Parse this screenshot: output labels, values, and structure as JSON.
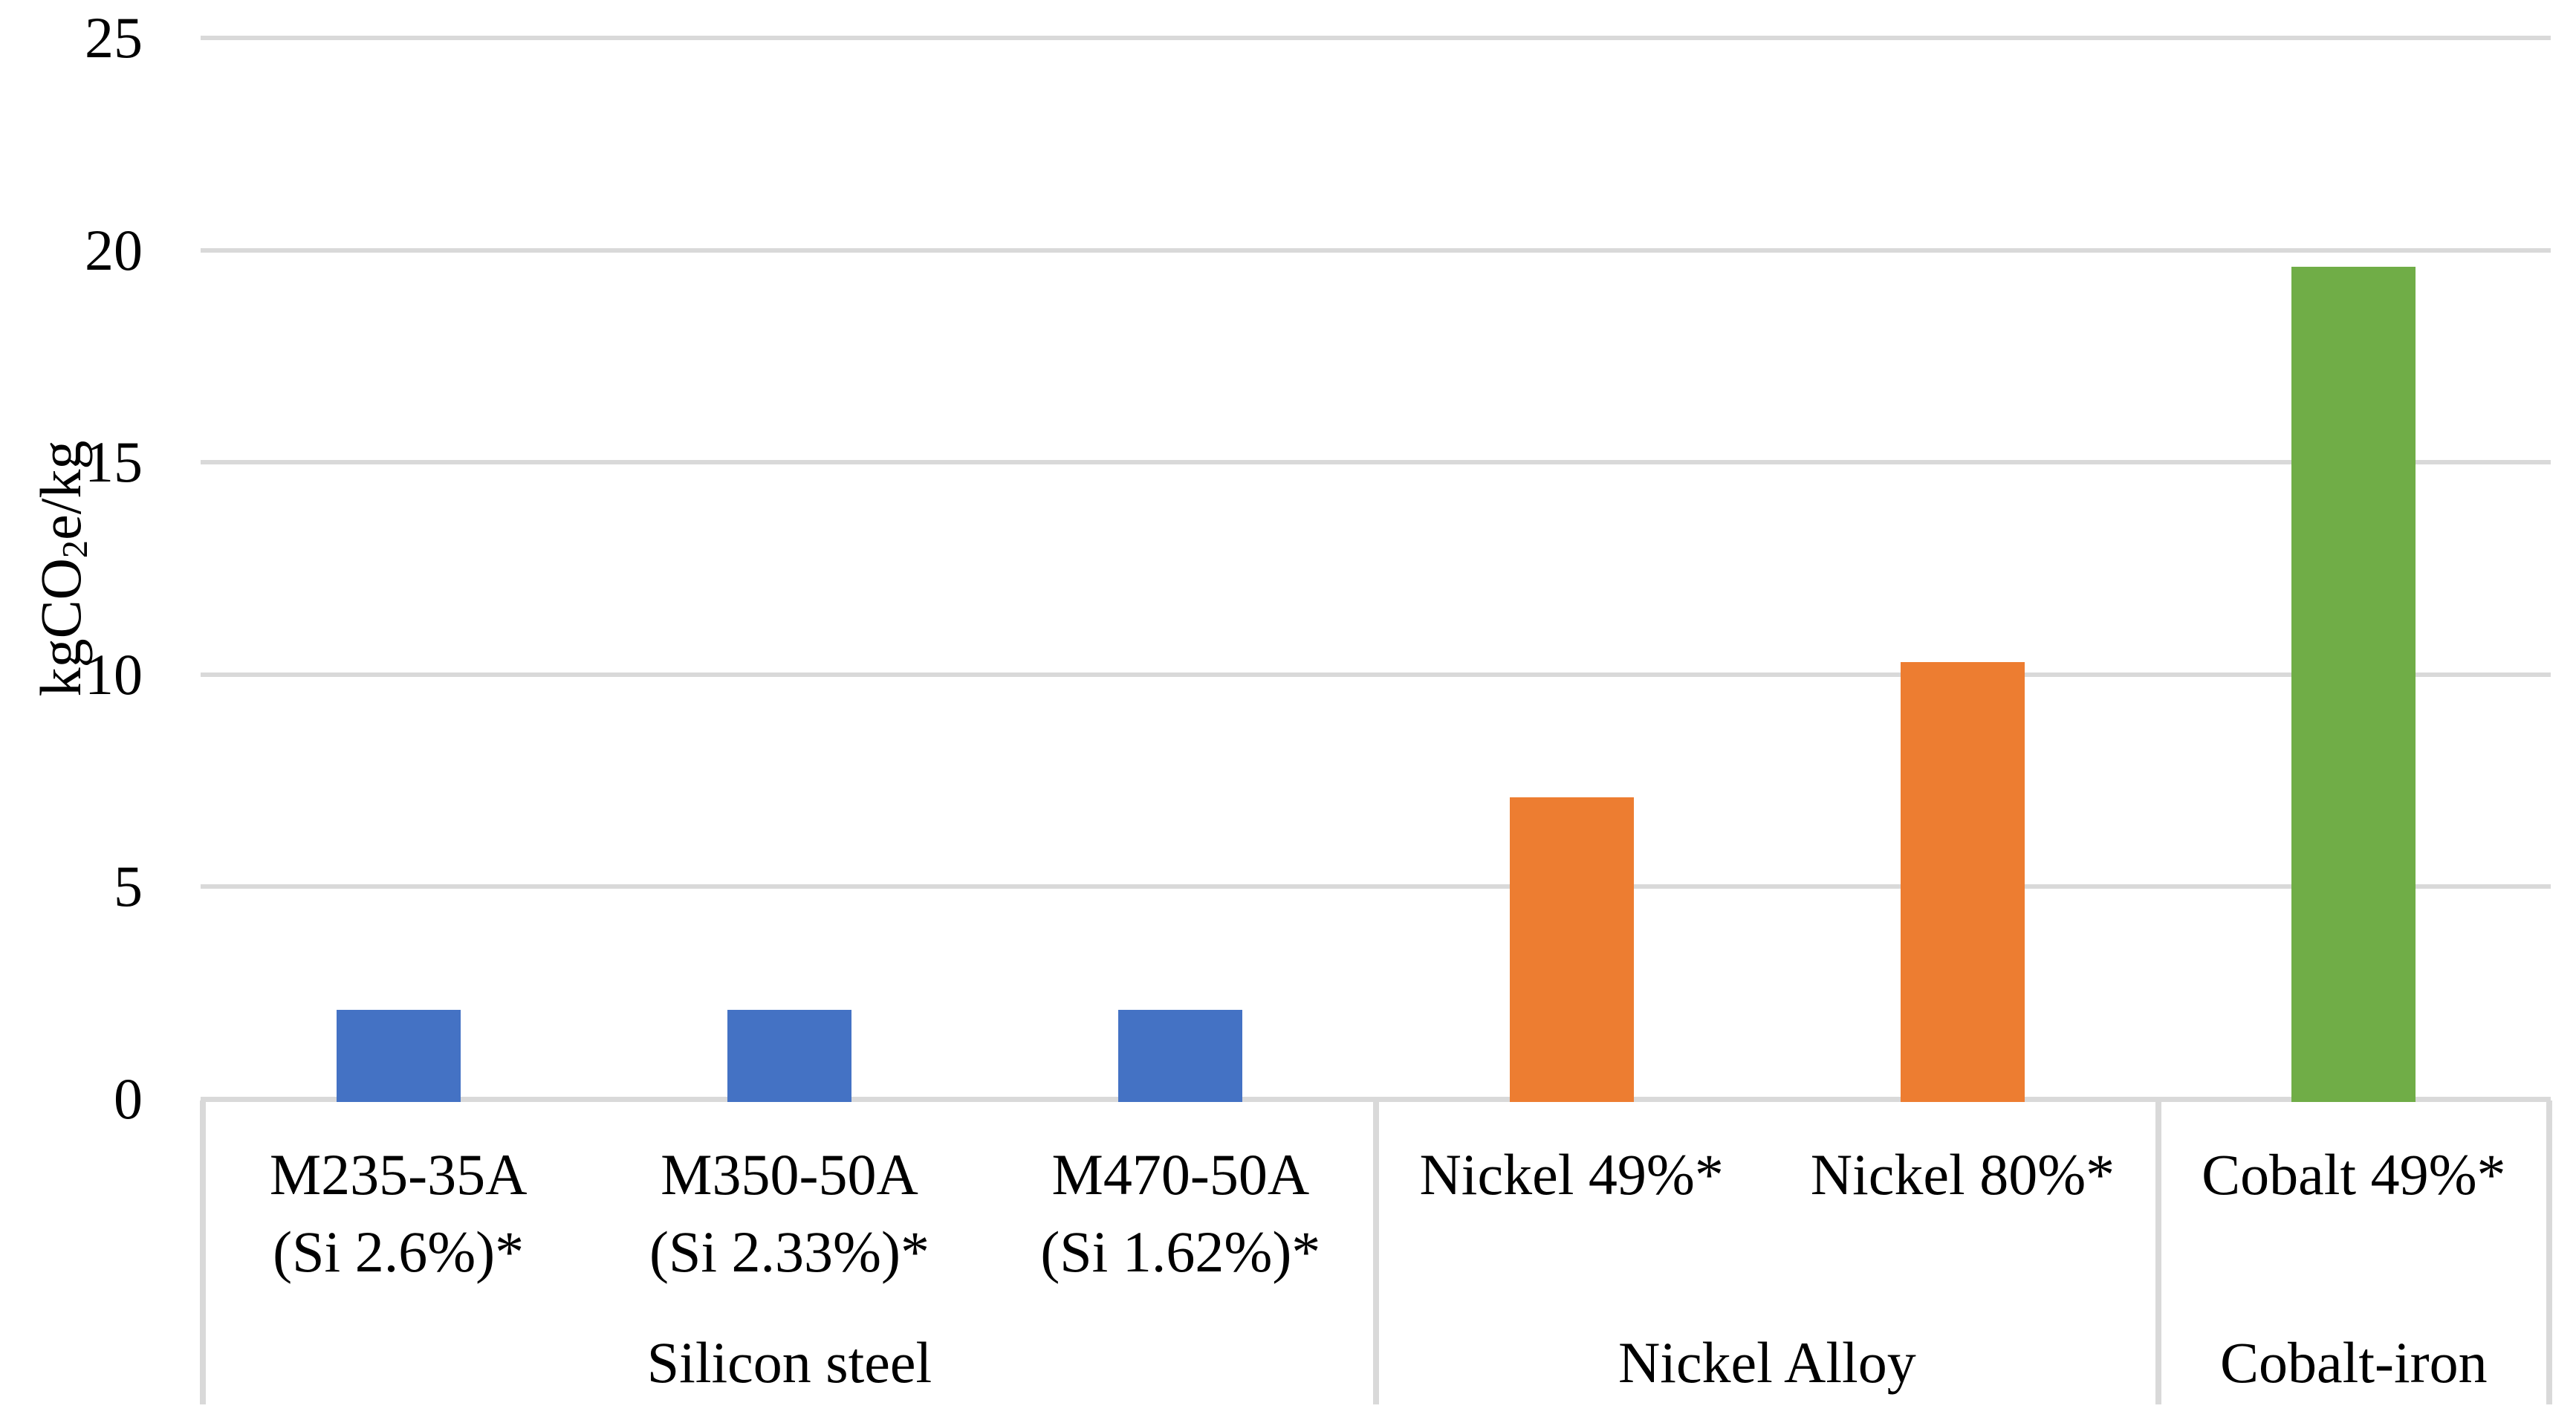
{
  "chart_data": {
    "type": "bar",
    "title": "",
    "ylabel": "kgCO2e/kg",
    "ylabel_parts": {
      "prefix": "kgCO",
      "subscript": "2",
      "suffix": "e/kg"
    },
    "ylim": [
      0,
      25
    ],
    "yticks": [
      25,
      20,
      15,
      10,
      5,
      0
    ],
    "ytick_interval": 5,
    "grid": true,
    "legend_position": "none",
    "gridline_color": "#D9D9D9",
    "axis_line_color": "#D9D9D9",
    "text_color": "#000000",
    "background_color": "#FFFFFF",
    "groups": [
      {
        "label": "Silicon steel",
        "color": "#4472C4",
        "bars": [
          {
            "category_line1": "M235-35A",
            "category_line2": "(Si 2.6%)*",
            "value": 2.1
          },
          {
            "category_line1": "M350-50A",
            "category_line2": "(Si 2.33%)*",
            "value": 2.1
          },
          {
            "category_line1": "M470-50A",
            "category_line2": "(Si 1.62%)*",
            "value": 2.1
          }
        ]
      },
      {
        "label": "Nickel Alloy",
        "color": "#ED7D31",
        "bars": [
          {
            "category_line1": "Nickel 49%*",
            "value": 7.1
          },
          {
            "category_line1": "Nickel 80%*",
            "value": 10.3
          }
        ]
      },
      {
        "label": "Cobalt-iron",
        "color": "#70AD47",
        "bars": [
          {
            "category_line1": "Cobalt 49%*",
            "value": 19.6
          }
        ]
      }
    ]
  }
}
